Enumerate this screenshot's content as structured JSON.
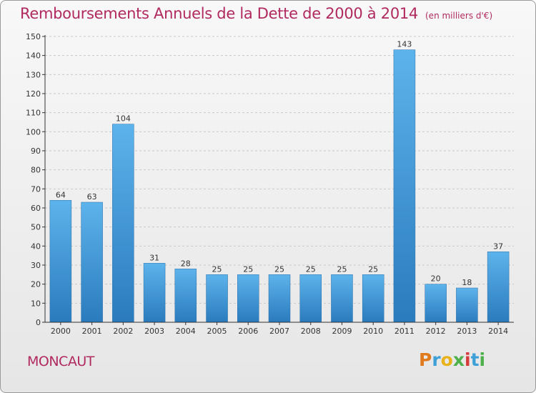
{
  "title": "Remboursements Annuels de la Dette de 2000 à 2014",
  "unit": "(en milliers d'€)",
  "commune": "MONCAUT",
  "logo_letters": [
    "P",
    "r",
    "o",
    "x",
    "i",
    "t",
    "i"
  ],
  "colors": {
    "title": "#b02a5f",
    "bar_light": "#5db3eb",
    "bar_dark": "#2a7bbd",
    "axis": "#333333"
  },
  "chart_data": {
    "type": "bar",
    "categories": [
      "2000",
      "2001",
      "2002",
      "2003",
      "2004",
      "2005",
      "2006",
      "2007",
      "2008",
      "2009",
      "2010",
      "2011",
      "2012",
      "2013",
      "2014"
    ],
    "values": [
      64,
      63,
      104,
      31,
      28,
      25,
      25,
      25,
      25,
      25,
      25,
      143,
      20,
      18,
      37
    ],
    "ylim": [
      0,
      150
    ],
    "yticks": [
      0,
      10,
      20,
      30,
      40,
      50,
      60,
      70,
      80,
      90,
      100,
      110,
      120,
      130,
      140,
      150
    ],
    "grid": true,
    "data_labels": true
  }
}
